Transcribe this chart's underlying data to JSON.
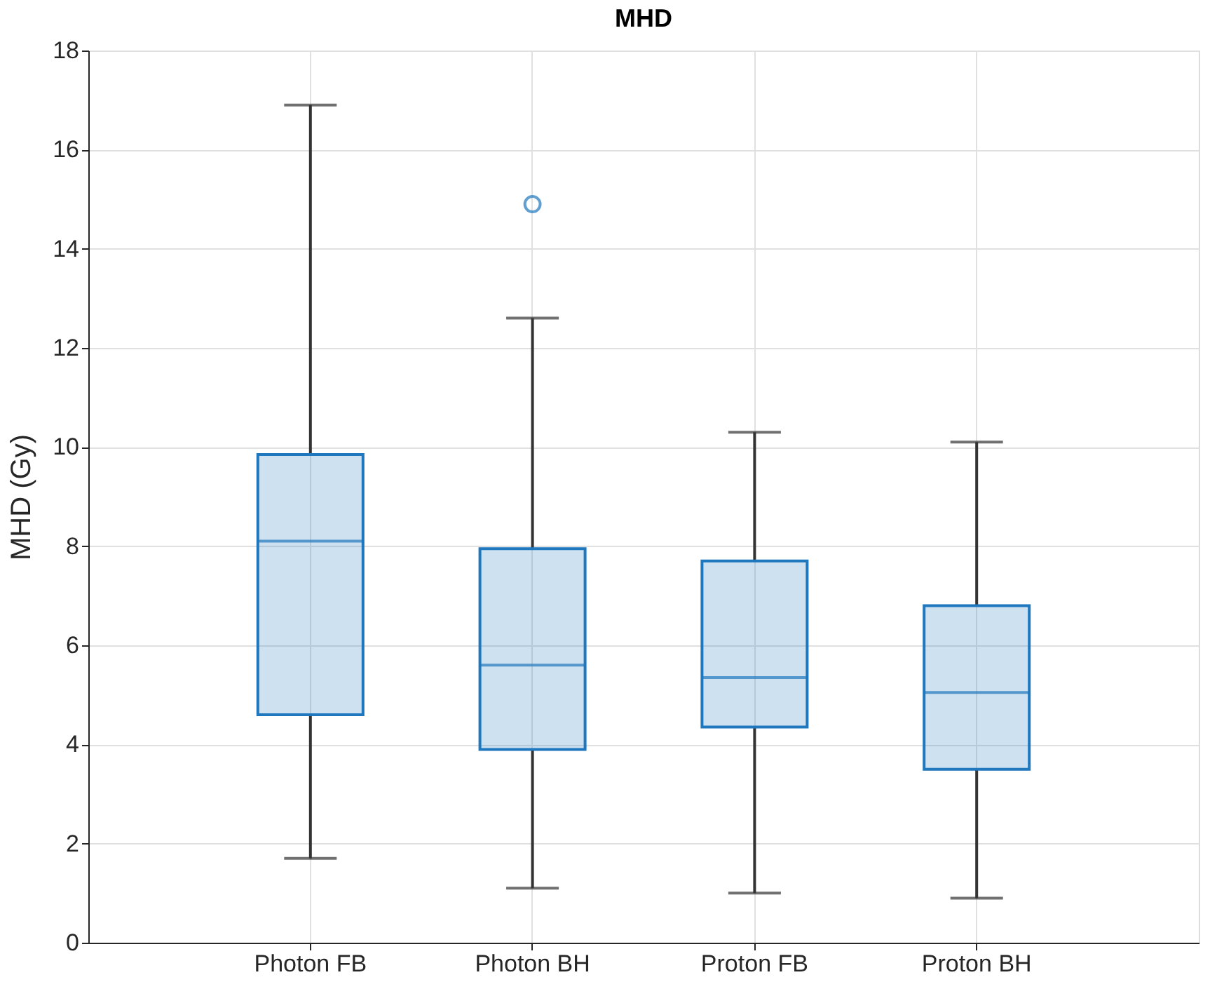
{
  "chart_data": {
    "type": "box",
    "title": "MHD",
    "ylabel": "MHD (Gy)",
    "categories": [
      "Photon FB",
      "Photon BH",
      "Proton FB",
      "Proton BH"
    ],
    "color": "#1f77bd",
    "boxes": [
      {
        "low": 1.7,
        "q1": 4.6,
        "median": 8.1,
        "q3": 9.85,
        "high": 16.9
      },
      {
        "low": 1.1,
        "q1": 3.9,
        "median": 5.6,
        "q3": 7.95,
        "high": 12.6,
        "outliers": [
          14.9
        ]
      },
      {
        "low": 1.0,
        "q1": 4.35,
        "median": 5.35,
        "q3": 7.7,
        "high": 10.3
      },
      {
        "low": 0.9,
        "q1": 3.5,
        "median": 5.05,
        "q3": 6.8,
        "high": 10.1
      }
    ],
    "ylim": [
      0,
      18
    ],
    "yticks": [
      0,
      2,
      4,
      6,
      8,
      10,
      12,
      14,
      16,
      18
    ],
    "grid": true
  }
}
